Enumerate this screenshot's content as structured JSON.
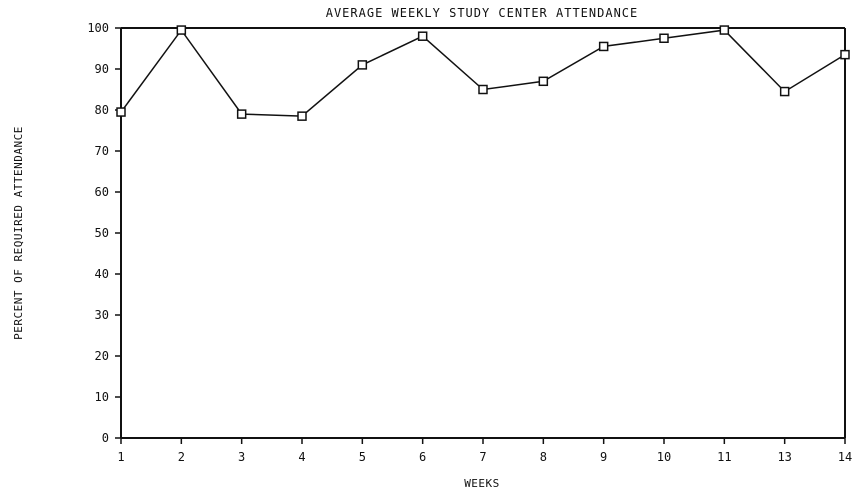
{
  "chart_data": {
    "type": "line",
    "title": "AVERAGE WEEKLY STUDY CENTER ATTENDANCE",
    "xlabel": "WEEKS",
    "ylabel": "PERCENT OF REQUIRED ATTENDANCE",
    "categories": [
      "1",
      "2",
      "3",
      "4",
      "5",
      "6",
      "7",
      "8",
      "9",
      "10",
      "11",
      "13",
      "14"
    ],
    "values": [
      79.5,
      99.5,
      79,
      78.5,
      91,
      98,
      85,
      87,
      95.5,
      97.5,
      99.5,
      84.5,
      93.5
    ],
    "ylim": [
      0,
      100
    ],
    "yticks": [
      "0",
      "10",
      "20",
      "30",
      "40",
      "50",
      "60",
      "70",
      "80",
      "90",
      "100"
    ],
    "grid": false,
    "legend": "none",
    "line_color": "#111111",
    "marker": "open-square"
  }
}
